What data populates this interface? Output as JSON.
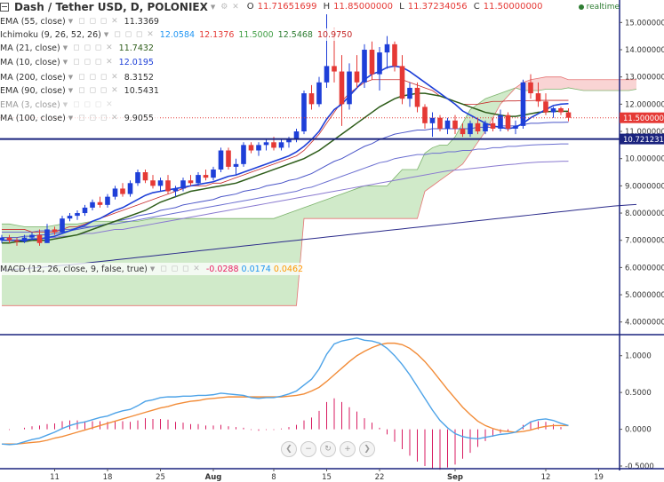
{
  "header": {
    "title": "Dash / Tether USD, D, POLONIEX",
    "o_label": "O",
    "o_value": "11.71651699",
    "h_label": "H",
    "h_value": "11.85000000",
    "l_label": "L",
    "l_value": "11.37234056",
    "c_label": "C",
    "c_value": "11.50000000",
    "realtime": "realtime"
  },
  "indicators": [
    {
      "label": "EMA (55, close)",
      "values": [
        "11.3369"
      ],
      "colors": [
        "#333333"
      ]
    },
    {
      "label": "Ichimoku (9, 26, 52, 26)",
      "values": [
        "12.0584",
        "12.1376",
        "11.5000",
        "12.5468",
        "10.9750"
      ],
      "colors": [
        "#2196f3",
        "#e53935",
        "#43a047",
        "#2e7d32",
        "#c62828"
      ]
    },
    {
      "label": "MA (21, close)",
      "values": [
        "11.7432"
      ],
      "colors": [
        "#2e5d1a"
      ]
    },
    {
      "label": "MA (10, close)",
      "values": [
        "12.0195"
      ],
      "colors": [
        "#1e40d8"
      ]
    },
    {
      "label": "MA (200, close)",
      "values": [
        "8.3152"
      ],
      "colors": [
        "#333333"
      ]
    },
    {
      "label": "EMA (90, close)",
      "values": [
        "10.5431"
      ],
      "colors": [
        "#333333"
      ]
    },
    {
      "label": "EMA (3, close)",
      "values": [],
      "colors": []
    },
    {
      "label": "MA (100, close)",
      "values": [
        "9.9055"
      ],
      "colors": [
        "#333333"
      ]
    }
  ],
  "macd": {
    "label": "MACD (12, 26, close, 9, false, true)",
    "values": [
      "-0.0288",
      "0.0174",
      "0.0462"
    ],
    "colors": [
      "#e91e63",
      "#2196f3",
      "#ff9800"
    ]
  },
  "price_axis": {
    "ticks": [
      "15.00000000",
      "14.00000000",
      "13.00000000",
      "12.00000000",
      "11.00000000",
      "10.00000000",
      "9.00000000",
      "8.00000000",
      "7.00000000",
      "6.00000000",
      "5.00000000",
      "4.00000000"
    ],
    "tick_values": [
      15,
      14,
      13,
      12,
      11,
      10,
      9,
      8,
      7,
      6,
      5,
      4
    ],
    "current_price": "11.50000000",
    "current_price_value": 11.5,
    "hline_label": "10.72123107",
    "hline_value": 10.72123107
  },
  "macd_axis": {
    "ticks": [
      "1.0000",
      "0.5000",
      "0.0000",
      "-0.5000"
    ],
    "tick_values": [
      1,
      0.5,
      0,
      -0.5
    ]
  },
  "time_axis": {
    "labels": [
      "11",
      "18",
      "25",
      "Aug",
      "8",
      "15",
      "22",
      "Sep",
      "12",
      "19"
    ],
    "label_bars": [
      7,
      14,
      21,
      28,
      36,
      43,
      50,
      60,
      72,
      79
    ],
    "bold": [
      false,
      false,
      false,
      true,
      false,
      false,
      false,
      true,
      false,
      false
    ]
  },
  "colors": {
    "up": "#1e3fd8",
    "down": "#e53935",
    "ma10": "#1e40d8",
    "ma21": "#2e5d1a",
    "ema55": "#4a55c8",
    "ema90": "#6b6fd0",
    "ma100": "#8a7ad0",
    "ma200": "#2a2a8a",
    "kumo_bull": "#c8e6c0",
    "kumo_bear": "#f8cccc",
    "macd_line": "#4da3e8",
    "signal_line": "#f28c38",
    "hist": "#d81b60"
  },
  "chart_data": {
    "type": "candlestick",
    "title": "Dash / Tether USD, D, POLONIEX",
    "ylim": [
      3.6,
      15.5
    ],
    "candles": [
      [
        7.0,
        7.2,
        6.9,
        7.1
      ],
      [
        7.1,
        7.2,
        6.9,
        7.0
      ],
      [
        7.0,
        7.1,
        6.8,
        6.95
      ],
      [
        6.95,
        7.2,
        6.9,
        7.1
      ],
      [
        7.1,
        7.3,
        7.0,
        7.2
      ],
      [
        7.2,
        7.4,
        6.8,
        6.9
      ],
      [
        6.9,
        7.6,
        6.9,
        7.4
      ],
      [
        7.4,
        7.5,
        7.2,
        7.3
      ],
      [
        7.3,
        7.9,
        7.25,
        7.8
      ],
      [
        7.8,
        8.0,
        7.7,
        7.9
      ],
      [
        7.9,
        8.1,
        7.75,
        8.0
      ],
      [
        8.0,
        8.3,
        7.9,
        8.2
      ],
      [
        8.2,
        8.5,
        8.1,
        8.4
      ],
      [
        8.4,
        8.6,
        8.2,
        8.3
      ],
      [
        8.3,
        8.7,
        8.2,
        8.6
      ],
      [
        8.6,
        9.0,
        8.5,
        8.9
      ],
      [
        8.9,
        9.1,
        8.6,
        8.7
      ],
      [
        8.7,
        9.2,
        8.6,
        9.1
      ],
      [
        9.1,
        9.6,
        9.0,
        9.5
      ],
      [
        9.5,
        9.6,
        9.1,
        9.2
      ],
      [
        9.2,
        9.4,
        8.9,
        9.0
      ],
      [
        9.0,
        9.3,
        8.8,
        9.2
      ],
      [
        9.2,
        9.4,
        8.7,
        8.8
      ],
      [
        8.8,
        9.0,
        8.6,
        8.9
      ],
      [
        8.9,
        9.3,
        8.8,
        9.2
      ],
      [
        9.2,
        9.4,
        9.0,
        9.1
      ],
      [
        9.1,
        9.5,
        9.0,
        9.4
      ],
      [
        9.4,
        9.6,
        9.2,
        9.3
      ],
      [
        9.3,
        9.7,
        9.2,
        9.6
      ],
      [
        9.6,
        10.4,
        9.5,
        10.3
      ],
      [
        10.3,
        10.4,
        9.6,
        9.7
      ],
      [
        9.7,
        10.0,
        9.4,
        9.8
      ],
      [
        9.8,
        10.6,
        9.7,
        10.5
      ],
      [
        10.5,
        10.6,
        10.2,
        10.3
      ],
      [
        10.3,
        10.6,
        10.1,
        10.5
      ],
      [
        10.5,
        10.7,
        10.3,
        10.6
      ],
      [
        10.6,
        10.8,
        10.3,
        10.4
      ],
      [
        10.4,
        10.7,
        10.3,
        10.6
      ],
      [
        10.6,
        10.8,
        10.4,
        10.7
      ],
      [
        10.7,
        11.1,
        10.6,
        11.0
      ],
      [
        11.0,
        12.5,
        10.9,
        12.4
      ],
      [
        12.4,
        12.7,
        11.8,
        12.0
      ],
      [
        12.0,
        13.0,
        11.9,
        12.8
      ],
      [
        12.8,
        15.3,
        12.6,
        13.4
      ],
      [
        13.4,
        14.8,
        12.8,
        13.2
      ],
      [
        13.2,
        13.8,
        11.2,
        12.0
      ],
      [
        12.0,
        13.5,
        11.8,
        13.2
      ],
      [
        13.2,
        13.8,
        12.6,
        12.8
      ],
      [
        12.8,
        14.2,
        12.6,
        14.0
      ],
      [
        14.0,
        14.3,
        12.9,
        13.1
      ],
      [
        13.1,
        14.1,
        12.5,
        13.9
      ],
      [
        13.9,
        14.5,
        13.3,
        14.2
      ],
      [
        14.2,
        14.3,
        13.2,
        13.4
      ],
      [
        13.4,
        13.8,
        12.0,
        12.2
      ],
      [
        12.2,
        12.8,
        11.9,
        12.6
      ],
      [
        12.6,
        12.8,
        11.7,
        11.9
      ],
      [
        11.9,
        12.0,
        11.1,
        11.3
      ],
      [
        11.3,
        11.7,
        10.8,
        11.5
      ],
      [
        11.5,
        11.6,
        11.0,
        11.1
      ],
      [
        11.1,
        11.5,
        10.9,
        11.4
      ],
      [
        11.4,
        11.6,
        10.9,
        11.1
      ],
      [
        11.1,
        11.3,
        10.8,
        10.9
      ],
      [
        10.9,
        11.4,
        10.8,
        11.3
      ],
      [
        11.3,
        11.5,
        10.9,
        11.0
      ],
      [
        11.0,
        11.4,
        10.9,
        11.3
      ],
      [
        11.3,
        11.5,
        11.0,
        11.1
      ],
      [
        11.1,
        11.8,
        11.0,
        11.6
      ],
      [
        11.6,
        11.7,
        11.0,
        11.1
      ],
      [
        11.1,
        11.4,
        10.9,
        11.2
      ],
      [
        11.2,
        12.9,
        11.1,
        12.8
      ],
      [
        12.8,
        13.1,
        12.2,
        12.4
      ],
      [
        12.4,
        12.8,
        11.9,
        12.1
      ],
      [
        12.1,
        12.4,
        11.6,
        11.7
      ],
      [
        11.7,
        11.9,
        11.5,
        11.85
      ],
      [
        11.85,
        11.9,
        11.6,
        11.7
      ],
      [
        11.7,
        11.85,
        11.37,
        11.5
      ]
    ],
    "macd_line": [
      -0.2,
      -0.21,
      -0.2,
      -0.17,
      -0.14,
      -0.12,
      -0.08,
      -0.04,
      0.01,
      0.05,
      0.08,
      0.1,
      0.13,
      0.16,
      0.18,
      0.22,
      0.25,
      0.27,
      0.32,
      0.38,
      0.4,
      0.43,
      0.44,
      0.44,
      0.45,
      0.45,
      0.46,
      0.46,
      0.47,
      0.49,
      0.48,
      0.47,
      0.46,
      0.43,
      0.42,
      0.43,
      0.43,
      0.45,
      0.48,
      0.52,
      0.6,
      0.68,
      0.82,
      1.02,
      1.16,
      1.2,
      1.22,
      1.24,
      1.21,
      1.2,
      1.17,
      1.1,
      1.0,
      0.88,
      0.74,
      0.58,
      0.42,
      0.26,
      0.12,
      0.02,
      -0.06,
      -0.1,
      -0.12,
      -0.13,
      -0.11,
      -0.09,
      -0.07,
      -0.06,
      -0.04,
      0.03,
      0.1,
      0.13,
      0.14,
      0.12,
      0.08,
      0.05
    ],
    "signal_line": [
      -0.2,
      -0.2,
      -0.2,
      -0.19,
      -0.18,
      -0.17,
      -0.15,
      -0.12,
      -0.1,
      -0.07,
      -0.04,
      -0.01,
      0.02,
      0.05,
      0.08,
      0.11,
      0.14,
      0.17,
      0.2,
      0.23,
      0.26,
      0.29,
      0.31,
      0.34,
      0.36,
      0.38,
      0.39,
      0.41,
      0.42,
      0.43,
      0.44,
      0.44,
      0.44,
      0.44,
      0.44,
      0.44,
      0.44,
      0.44,
      0.45,
      0.46,
      0.48,
      0.52,
      0.57,
      0.65,
      0.74,
      0.83,
      0.92,
      1.0,
      1.06,
      1.11,
      1.15,
      1.17,
      1.17,
      1.15,
      1.1,
      1.02,
      0.92,
      0.8,
      0.67,
      0.54,
      0.42,
      0.3,
      0.2,
      0.11,
      0.05,
      0.01,
      -0.02,
      -0.03,
      -0.04,
      -0.03,
      -0.01,
      0.02,
      0.04,
      0.05,
      0.05,
      0.05
    ],
    "ma10": [
      7.0,
      7.0,
      7.0,
      7.0,
      7.05,
      7.05,
      7.1,
      7.15,
      7.25,
      7.35,
      7.45,
      7.55,
      7.7,
      7.8,
      7.95,
      8.1,
      8.2,
      8.35,
      8.5,
      8.65,
      8.75,
      8.8,
      8.85,
      8.9,
      8.95,
      9.0,
      9.05,
      9.1,
      9.15,
      9.25,
      9.35,
      9.4,
      9.5,
      9.6,
      9.7,
      9.8,
      9.9,
      10.0,
      10.1,
      10.25,
      10.45,
      10.7,
      11.0,
      11.45,
      11.8,
      12.0,
      12.3,
      12.6,
      12.9,
      13.1,
      13.2,
      13.35,
      13.4,
      13.35,
      13.2,
      13.0,
      12.8,
      12.6,
      12.4,
      12.2,
      12.0,
      11.75,
      11.6,
      11.45,
      11.3,
      11.2,
      11.15,
      11.1,
      11.15,
      11.3,
      11.5,
      11.65,
      11.8,
      11.95,
      12.0,
      12.02
    ],
    "ma21": [
      6.9,
      6.9,
      6.95,
      6.95,
      7.0,
      7.0,
      7.0,
      7.05,
      7.1,
      7.15,
      7.2,
      7.3,
      7.4,
      7.5,
      7.6,
      7.7,
      7.8,
      7.9,
      8.0,
      8.1,
      8.25,
      8.4,
      8.5,
      8.6,
      8.7,
      8.8,
      8.85,
      8.9,
      8.95,
      9.0,
      9.05,
      9.1,
      9.2,
      9.3,
      9.4,
      9.5,
      9.6,
      9.7,
      9.8,
      9.9,
      10.0,
      10.15,
      10.3,
      10.5,
      10.7,
      10.9,
      11.1,
      11.3,
      11.5,
      11.7,
      11.9,
      12.05,
      12.2,
      12.3,
      12.35,
      12.4,
      12.4,
      12.35,
      12.3,
      12.2,
      12.1,
      12.0,
      11.9,
      11.8,
      11.7,
      11.65,
      11.6,
      11.55,
      11.55,
      11.6,
      11.65,
      11.7,
      11.72,
      11.74,
      11.74,
      11.74
    ],
    "ema55": [
      7.1,
      7.1,
      7.1,
      7.15,
      7.15,
      7.2,
      7.2,
      7.25,
      7.3,
      7.35,
      7.4,
      7.45,
      7.5,
      7.55,
      7.6,
      7.7,
      7.75,
      7.8,
      7.9,
      7.95,
      8.0,
      8.1,
      8.15,
      8.2,
      8.3,
      8.35,
      8.4,
      8.45,
      8.5,
      8.6,
      8.65,
      8.7,
      8.8,
      8.85,
      8.9,
      9.0,
      9.05,
      9.1,
      9.2,
      9.25,
      9.35,
      9.45,
      9.6,
      9.75,
      9.9,
      10.0,
      10.15,
      10.3,
      10.45,
      10.55,
      10.7,
      10.8,
      10.9,
      10.95,
      11.0,
      11.05,
      11.05,
      11.1,
      11.1,
      11.1,
      11.1,
      11.1,
      11.1,
      11.15,
      11.15,
      11.15,
      11.2,
      11.2,
      11.2,
      11.25,
      11.3,
      11.3,
      11.32,
      11.33,
      11.33,
      11.34
    ],
    "ema90": [
      7.3,
      7.3,
      7.3,
      7.3,
      7.3,
      7.35,
      7.35,
      7.35,
      7.4,
      7.4,
      7.45,
      7.5,
      7.5,
      7.55,
      7.6,
      7.6,
      7.65,
      7.7,
      7.75,
      7.8,
      7.85,
      7.9,
      7.95,
      8.0,
      8.05,
      8.1,
      8.15,
      8.2,
      8.25,
      8.3,
      8.35,
      8.4,
      8.45,
      8.5,
      8.55,
      8.6,
      8.65,
      8.7,
      8.75,
      8.8,
      8.9,
      8.95,
      9.05,
      9.15,
      9.25,
      9.35,
      9.45,
      9.55,
      9.65,
      9.75,
      9.85,
      9.9,
      10.0,
      10.05,
      10.1,
      10.15,
      10.15,
      10.2,
      10.2,
      10.25,
      10.25,
      10.3,
      10.3,
      10.35,
      10.35,
      10.4,
      10.4,
      10.45,
      10.45,
      10.48,
      10.5,
      10.51,
      10.52,
      10.53,
      10.54,
      10.54
    ],
    "ma100": [
      7.0,
      7.0,
      7.0,
      7.0,
      7.05,
      7.05,
      7.1,
      7.1,
      7.15,
      7.15,
      7.2,
      7.25,
      7.25,
      7.3,
      7.35,
      7.4,
      7.4,
      7.45,
      7.5,
      7.55,
      7.6,
      7.65,
      7.7,
      7.75,
      7.8,
      7.85,
      7.9,
      7.95,
      8.0,
      8.05,
      8.1,
      8.15,
      8.2,
      8.25,
      8.3,
      8.35,
      8.4,
      8.45,
      8.5,
      8.55,
      8.6,
      8.65,
      8.7,
      8.75,
      8.8,
      8.85,
      8.9,
      8.95,
      9.0,
      9.05,
      9.1,
      9.15,
      9.2,
      9.25,
      9.3,
      9.35,
      9.4,
      9.45,
      9.5,
      9.55,
      9.58,
      9.6,
      9.63,
      9.66,
      9.69,
      9.72,
      9.75,
      9.78,
      9.8,
      9.83,
      9.85,
      9.87,
      9.88,
      9.89,
      9.9,
      9.905
    ],
    "ma200": [
      5.9,
      5.92,
      5.94,
      5.96,
      5.98,
      6.0,
      6.03,
      6.05,
      6.08,
      6.1,
      6.13,
      6.16,
      6.19,
      6.22,
      6.25,
      6.28,
      6.31,
      6.34,
      6.37,
      6.4,
      6.43,
      6.46,
      6.49,
      6.52,
      6.55,
      6.58,
      6.61,
      6.64,
      6.67,
      6.7,
      6.73,
      6.76,
      6.79,
      6.82,
      6.85,
      6.88,
      6.91,
      6.94,
      6.97,
      7.0,
      7.03,
      7.06,
      7.09,
      7.12,
      7.15,
      7.18,
      7.21,
      7.24,
      7.27,
      7.3,
      7.33,
      7.36,
      7.39,
      7.42,
      7.45,
      7.48,
      7.51,
      7.54,
      7.57,
      7.6,
      7.63,
      7.66,
      7.69,
      7.72,
      7.75,
      7.78,
      7.81,
      7.84,
      7.87,
      7.9,
      7.93,
      7.96,
      7.99,
      8.02,
      8.05,
      8.08,
      8.11,
      8.14,
      8.17,
      8.2,
      8.23,
      8.26,
      8.28,
      8.3,
      8.315
    ],
    "senkou_a": [
      7.6,
      7.6,
      7.55,
      7.5,
      7.5,
      7.5,
      7.5,
      7.55,
      7.6,
      7.6,
      7.6,
      7.65,
      7.7,
      7.7,
      7.7,
      7.7,
      7.7,
      7.7,
      7.7,
      7.75,
      7.8,
      7.8,
      7.8,
      7.8,
      7.8,
      7.8,
      7.8,
      7.8,
      7.8,
      7.8,
      7.8,
      7.8,
      7.8,
      7.8,
      7.8,
      7.8,
      7.8,
      7.9,
      8.0,
      8.1,
      8.2,
      8.3,
      8.4,
      8.5,
      8.6,
      8.7,
      8.8,
      8.9,
      9.0,
      9.0,
      9.0,
      9.0,
      9.3,
      9.6,
      9.6,
      9.6,
      10.2,
      10.4,
      10.5,
      10.5,
      10.8,
      11.3,
      11.8,
      12.0,
      12.2,
      12.3,
      12.4,
      12.5,
      12.6,
      12.5,
      12.5,
      12.5,
      12.55,
      12.55,
      12.55,
      12.6,
      12.55,
      12.5,
      12.5,
      12.5,
      12.5,
      12.5,
      12.5,
      12.5,
      12.55
    ],
    "senkou_b": [
      4.6,
      4.6,
      4.6,
      4.6,
      4.6,
      4.6,
      4.6,
      4.6,
      4.6,
      4.6,
      4.6,
      4.6,
      4.6,
      4.6,
      4.6,
      4.6,
      4.6,
      4.6,
      4.6,
      4.6,
      4.6,
      4.6,
      4.6,
      4.6,
      4.6,
      4.6,
      4.6,
      4.6,
      4.6,
      4.6,
      4.6,
      4.6,
      4.6,
      4.6,
      4.6,
      4.6,
      4.6,
      4.6,
      4.6,
      4.6,
      7.8,
      7.8,
      7.8,
      7.8,
      7.8,
      7.8,
      7.8,
      7.8,
      7.8,
      7.8,
      7.8,
      7.8,
      7.8,
      7.8,
      7.8,
      7.8,
      8.8,
      9.0,
      9.2,
      9.4,
      9.6,
      9.8,
      10.2,
      10.6,
      11.0,
      11.5,
      12.0,
      12.3,
      12.6,
      12.8,
      12.9,
      12.95,
      13.0,
      13.0,
      13.0,
      12.9,
      12.9,
      12.9,
      12.9,
      12.9,
      12.9,
      12.9,
      12.9,
      12.9,
      12.9
    ],
    "ichimoku_base": [
      7.4,
      7.4,
      7.4,
      7.4,
      7.3,
      7.3,
      7.3,
      7.3,
      7.4,
      7.5,
      7.5,
      7.6,
      7.7,
      7.8,
      7.9,
      8.0,
      8.1,
      8.2,
      8.3,
      8.4,
      8.5,
      8.6,
      8.7,
      8.8,
      8.9,
      9.0,
      9.0,
      9.0,
      9.1,
      9.1,
      9.2,
      9.3,
      9.4,
      9.5,
      9.6,
      9.7,
      9.8,
      9.9,
      10.0,
      10.1,
      10.3,
      10.6,
      10.9,
      11.3,
      11.7,
      12.1,
      12.4,
      12.6,
      12.8,
      12.9,
      12.9,
      12.9,
      12.9,
      12.9,
      12.8,
      12.7,
      12.6,
      12.5,
      12.3,
      12.2,
      12.1,
      12.0,
      12.0,
      12.0,
      12.05,
      12.1,
      12.1,
      12.12,
      12.12,
      12.13,
      12.13,
      12.14,
      12.14,
      12.14,
      12.14,
      12.14
    ]
  }
}
